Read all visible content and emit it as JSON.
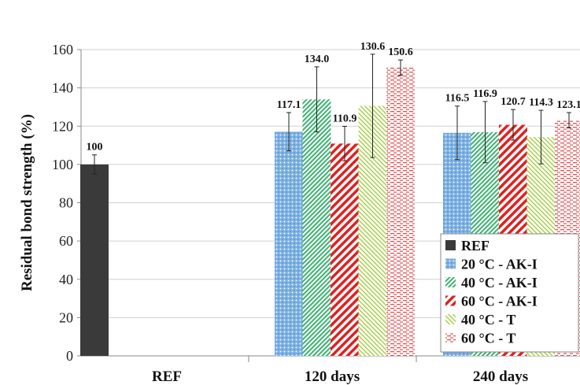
{
  "chart_data": {
    "type": "bar",
    "ylabel": "Residual bond strength (%)",
    "ylim": [
      0,
      160
    ],
    "yticks": [
      0,
      20,
      40,
      60,
      80,
      100,
      120,
      140,
      160
    ],
    "categories": [
      "REF",
      "120 days",
      "240 days"
    ],
    "grid": "horizontal",
    "legend_position": "bottom-right",
    "series": [
      {
        "name": "REF",
        "color": "#3a3a3a",
        "pattern": "solid",
        "values": [
          100,
          null,
          null
        ],
        "labels": [
          "100",
          null,
          null
        ],
        "errors": [
          5,
          null,
          null
        ]
      },
      {
        "name": "20 °C - AK-I",
        "color": "#5b9bd5",
        "pattern": "dots",
        "values": [
          null,
          117.1,
          116.5
        ],
        "labels": [
          null,
          "117.1",
          "116.5"
        ],
        "errors": [
          null,
          10,
          14
        ]
      },
      {
        "name": "40 °C - AK-I",
        "color": "#3cb371",
        "pattern": "diagonal-fine",
        "values": [
          null,
          134.0,
          116.9
        ],
        "labels": [
          null,
          "134.0",
          "116.9"
        ],
        "errors": [
          null,
          17,
          16
        ]
      },
      {
        "name": "60 °C - AK-I",
        "color": "#e02020",
        "pattern": "diagonal-wide",
        "values": [
          null,
          110.9,
          120.7
        ],
        "labels": [
          null,
          "110.9",
          "120.7"
        ],
        "errors": [
          null,
          9,
          8
        ]
      },
      {
        "name": "40 °C - T",
        "color": "#9acd32",
        "pattern": "diagonal-light",
        "values": [
          null,
          130.6,
          114.3
        ],
        "labels": [
          null,
          "130.6",
          "114.3"
        ],
        "errors": [
          null,
          27,
          14
        ]
      },
      {
        "name": "60 °C - T",
        "color": "#e05050",
        "pattern": "dashes",
        "values": [
          null,
          150.6,
          123.1
        ],
        "labels": [
          null,
          "150.6",
          "123.1"
        ],
        "errors": [
          null,
          4,
          4
        ]
      }
    ]
  }
}
